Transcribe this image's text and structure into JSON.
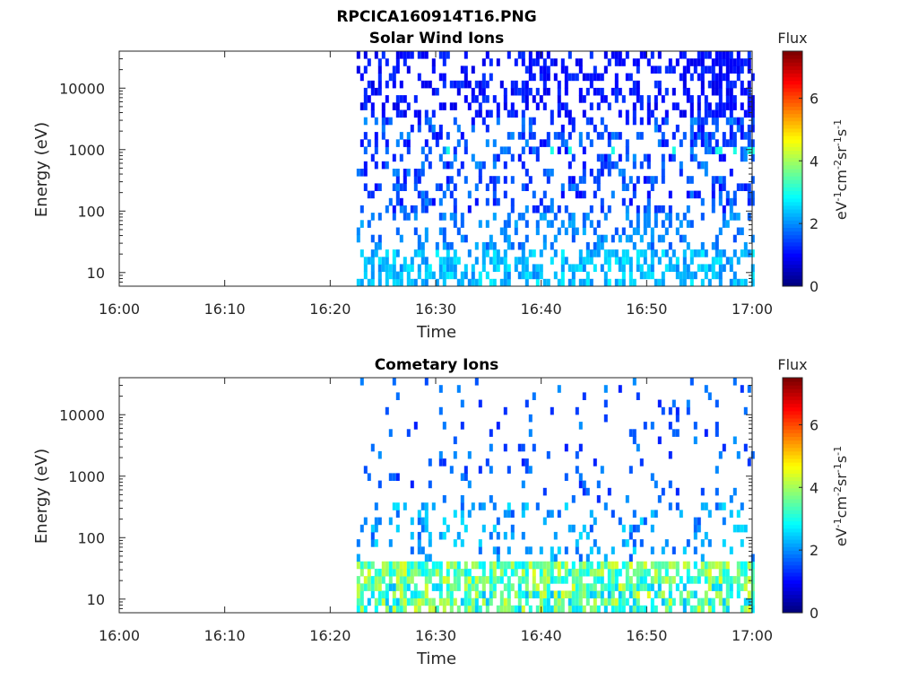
{
  "figure": {
    "title": "RPCICA160914T16.PNG"
  },
  "chart_data": [
    {
      "type": "heatmap",
      "title": "Solar Wind Ions",
      "xlabel": "Time",
      "ylabel": "Energy (eV)",
      "xticks": [
        "16:00",
        "16:10",
        "16:20",
        "16:30",
        "16:40",
        "16:50",
        "17:00"
      ],
      "xlim": [
        "16:00",
        "17:00"
      ],
      "yscale": "log",
      "yticks": [
        10,
        100,
        1000,
        10000
      ],
      "ytick_labels": [
        "10",
        "100",
        "1000",
        "10000"
      ],
      "ylim": [
        6,
        40000
      ],
      "data_start": "16:22:30",
      "colorbar": {
        "label": "Flux",
        "unit": "eV-1cm-2sr-1s-1",
        "ticks": [
          "0",
          "2",
          "4",
          "6"
        ],
        "range": [
          0,
          7.5
        ]
      },
      "colormap": "jet",
      "grid": false
    },
    {
      "type": "heatmap",
      "title": "Cometary Ions",
      "xlabel": "Time",
      "ylabel": "Energy (eV)",
      "xticks": [
        "16:00",
        "16:10",
        "16:20",
        "16:30",
        "16:40",
        "16:50",
        "17:00"
      ],
      "xlim": [
        "16:00",
        "17:00"
      ],
      "yscale": "log",
      "yticks": [
        10,
        100,
        1000,
        10000
      ],
      "ytick_labels": [
        "10",
        "100",
        "1000",
        "10000"
      ],
      "ylim": [
        6,
        40000
      ],
      "data_start": "16:22:30",
      "colorbar": {
        "label": "Flux",
        "unit": "eV-1cm-2sr-1s-1",
        "ticks": [
          "0",
          "2",
          "4",
          "6"
        ],
        "range": [
          0,
          7.5
        ]
      },
      "colormap": "jet",
      "grid": false
    }
  ]
}
